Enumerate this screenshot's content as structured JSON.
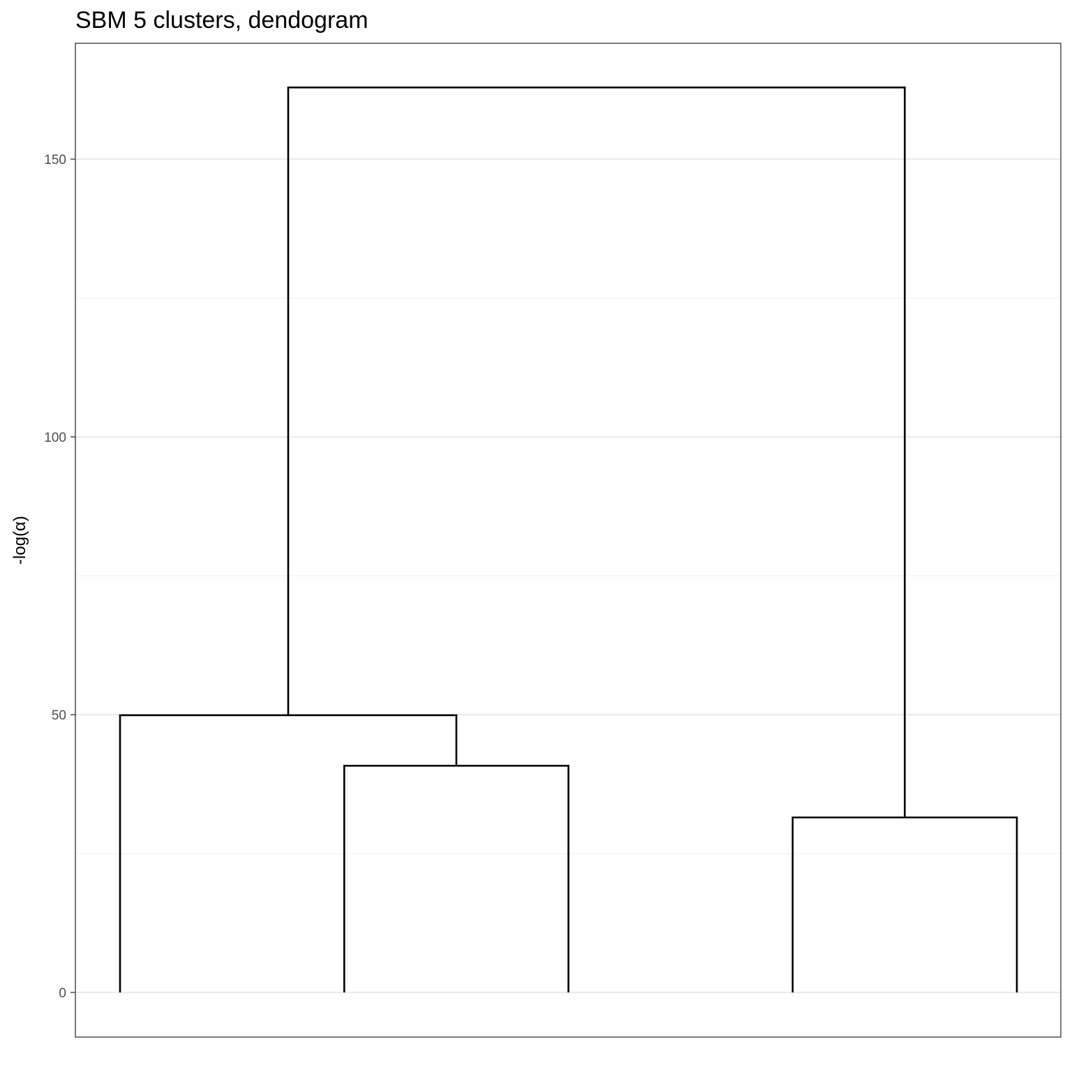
{
  "chart_data": {
    "type": "dendrogram",
    "title": "SBM 5 clusters, dendogram",
    "xlabel": "",
    "ylabel": "-log(α)",
    "ylim": [
      -4.5,
      170
    ],
    "y_major_ticks": [
      0,
      50,
      100,
      150
    ],
    "y_minor_gridlines": [
      25,
      75,
      125
    ],
    "y_tick_labels": [
      "0",
      "50",
      "100",
      "150"
    ],
    "x_range": [
      0.6,
      9.45
    ],
    "leaves": [
      {
        "x": 1,
        "height": 0
      },
      {
        "x": 3,
        "height": 0
      },
      {
        "x": 5,
        "height": 0
      },
      {
        "x": 7,
        "height": 0
      },
      {
        "x": 9,
        "height": 0
      }
    ],
    "merges": [
      {
        "left_x": 3,
        "left_height": 0,
        "right_x": 5,
        "right_height": 0,
        "height": 40.8
      },
      {
        "left_x": 7,
        "left_height": 0,
        "right_x": 9,
        "right_height": 0,
        "height": 31.5
      },
      {
        "left_x": 1,
        "left_height": 0,
        "right_x": 4,
        "right_height": 40.8,
        "height": 49.9
      },
      {
        "left_x": 2.5,
        "left_height": 49.9,
        "right_x": 8,
        "right_height": 31.5,
        "height": 162.9
      }
    ],
    "grid": true,
    "legend": "none"
  }
}
